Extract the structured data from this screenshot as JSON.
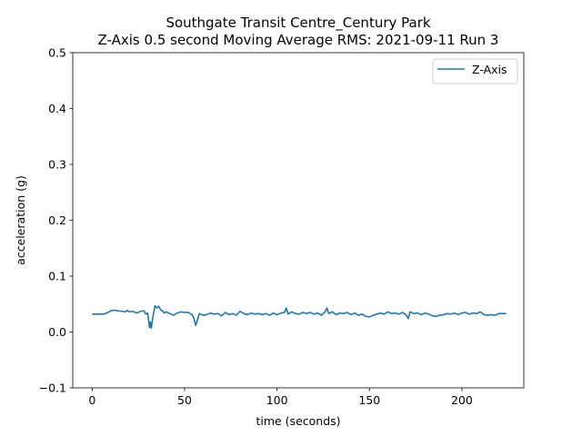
{
  "chart_data": {
    "type": "line",
    "title_line1": "Southgate Transit Centre_Century Park",
    "title_line2": "Z-Axis 0.5 second Moving Average RMS: 2021-09-11 Run 3",
    "xlabel": "time (seconds)",
    "ylabel": "acceleration (g)",
    "xlim": [
      -10.5,
      233.5
    ],
    "ylim": [
      -0.1,
      0.5
    ],
    "xticks": [
      0,
      50,
      100,
      150,
      200
    ],
    "yticks": [
      -0.1,
      0.0,
      0.1,
      0.2,
      0.3,
      0.4,
      0.5
    ],
    "grid": false,
    "legend_position": "top-right",
    "colors": {
      "series": "#1f77b4",
      "axes": "#000000",
      "legend_border": "#cccccc"
    },
    "series": [
      {
        "name": "Z-Axis",
        "x": [
          0,
          3,
          6,
          8,
          10,
          12,
          14,
          16,
          18,
          19,
          20,
          22,
          24,
          25,
          26,
          28,
          29,
          30,
          30.5,
          31,
          31.5,
          32,
          33,
          34,
          35,
          36,
          37,
          38,
          39,
          40,
          42,
          44,
          46,
          48,
          50,
          52,
          54,
          55,
          56,
          57,
          58,
          60,
          62,
          64,
          66,
          68,
          70,
          72,
          74,
          76,
          78,
          80,
          82,
          84,
          86,
          88,
          90,
          92,
          94,
          96,
          98,
          100,
          102,
          104,
          105,
          106,
          108,
          110,
          112,
          114,
          116,
          118,
          120,
          122,
          124,
          126,
          127,
          128,
          130,
          132,
          134,
          136,
          138,
          140,
          142,
          144,
          146,
          148,
          150,
          152,
          154,
          156,
          158,
          160,
          162,
          164,
          166,
          168,
          170,
          171,
          172,
          174,
          176,
          178,
          180,
          182,
          184,
          186,
          188,
          190,
          192,
          194,
          196,
          198,
          200,
          202,
          204,
          206,
          208,
          210,
          212,
          214,
          216,
          218,
          220,
          224
        ],
        "y": [
          0.032,
          0.032,
          0.032,
          0.034,
          0.038,
          0.039,
          0.038,
          0.037,
          0.036,
          0.039,
          0.036,
          0.037,
          0.034,
          0.035,
          0.037,
          0.038,
          0.032,
          0.034,
          0.022,
          0.008,
          0.018,
          0.007,
          0.03,
          0.047,
          0.043,
          0.046,
          0.04,
          0.038,
          0.034,
          0.036,
          0.033,
          0.03,
          0.034,
          0.036,
          0.035,
          0.035,
          0.031,
          0.025,
          0.012,
          0.022,
          0.033,
          0.03,
          0.031,
          0.034,
          0.032,
          0.033,
          0.029,
          0.035,
          0.031,
          0.033,
          0.03,
          0.037,
          0.033,
          0.031,
          0.034,
          0.032,
          0.033,
          0.031,
          0.033,
          0.03,
          0.034,
          0.031,
          0.034,
          0.035,
          0.043,
          0.032,
          0.036,
          0.033,
          0.032,
          0.035,
          0.033,
          0.035,
          0.032,
          0.034,
          0.03,
          0.036,
          0.043,
          0.033,
          0.036,
          0.031,
          0.034,
          0.033,
          0.035,
          0.031,
          0.034,
          0.03,
          0.032,
          0.028,
          0.027,
          0.03,
          0.032,
          0.034,
          0.032,
          0.036,
          0.033,
          0.034,
          0.032,
          0.035,
          0.03,
          0.024,
          0.036,
          0.033,
          0.034,
          0.031,
          0.034,
          0.032,
          0.029,
          0.028,
          0.03,
          0.031,
          0.033,
          0.032,
          0.034,
          0.031,
          0.034,
          0.035,
          0.032,
          0.034,
          0.033,
          0.036,
          0.031,
          0.03,
          0.031,
          0.03,
          0.033,
          0.033
        ]
      }
    ]
  }
}
